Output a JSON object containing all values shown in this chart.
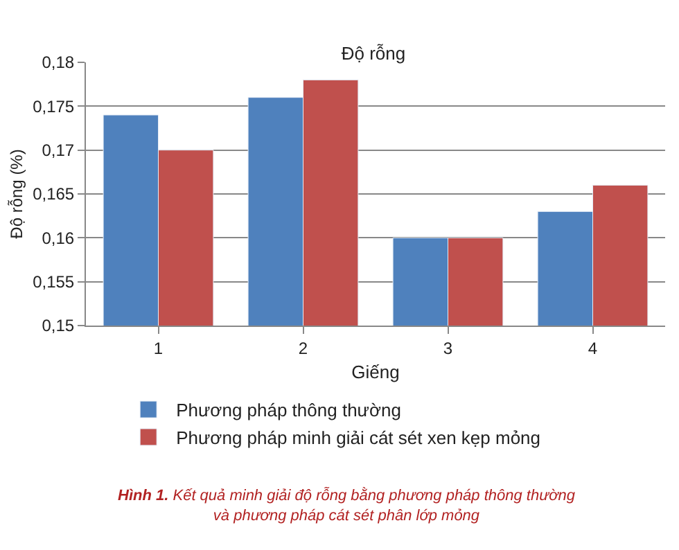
{
  "chart_data": {
    "type": "bar",
    "title": "Độ rỗng",
    "xlabel": "Giếng",
    "ylabel": "Độ rỗng (%)",
    "categories": [
      "1",
      "2",
      "3",
      "4"
    ],
    "series": [
      {
        "name": "Phương pháp thông thường",
        "color": "#4f81bd",
        "values": [
          0.174,
          0.176,
          0.16,
          0.163
        ]
      },
      {
        "name": "Phương pháp minh giải cát sét xen kẹp mỏng",
        "color": "#c0504d",
        "values": [
          0.17,
          0.178,
          0.16,
          0.166
        ]
      }
    ],
    "ylim": [
      0.15,
      0.18
    ],
    "yticks": [
      {
        "value": 0.15,
        "label": "0,15"
      },
      {
        "value": 0.155,
        "label": "0,155"
      },
      {
        "value": 0.16,
        "label": "0,16"
      },
      {
        "value": 0.165,
        "label": "0,165"
      },
      {
        "value": 0.17,
        "label": "0,17"
      },
      {
        "value": 0.175,
        "label": "0,175"
      },
      {
        "value": 0.18,
        "label": "0,18"
      }
    ],
    "grid": "y",
    "legend": "bottom",
    "annotations": [
      "Hình 1. Kết quả minh giải độ rỗng bằng phương pháp thông thường\nvà phương pháp cát sét phân lớp mỏng"
    ]
  }
}
